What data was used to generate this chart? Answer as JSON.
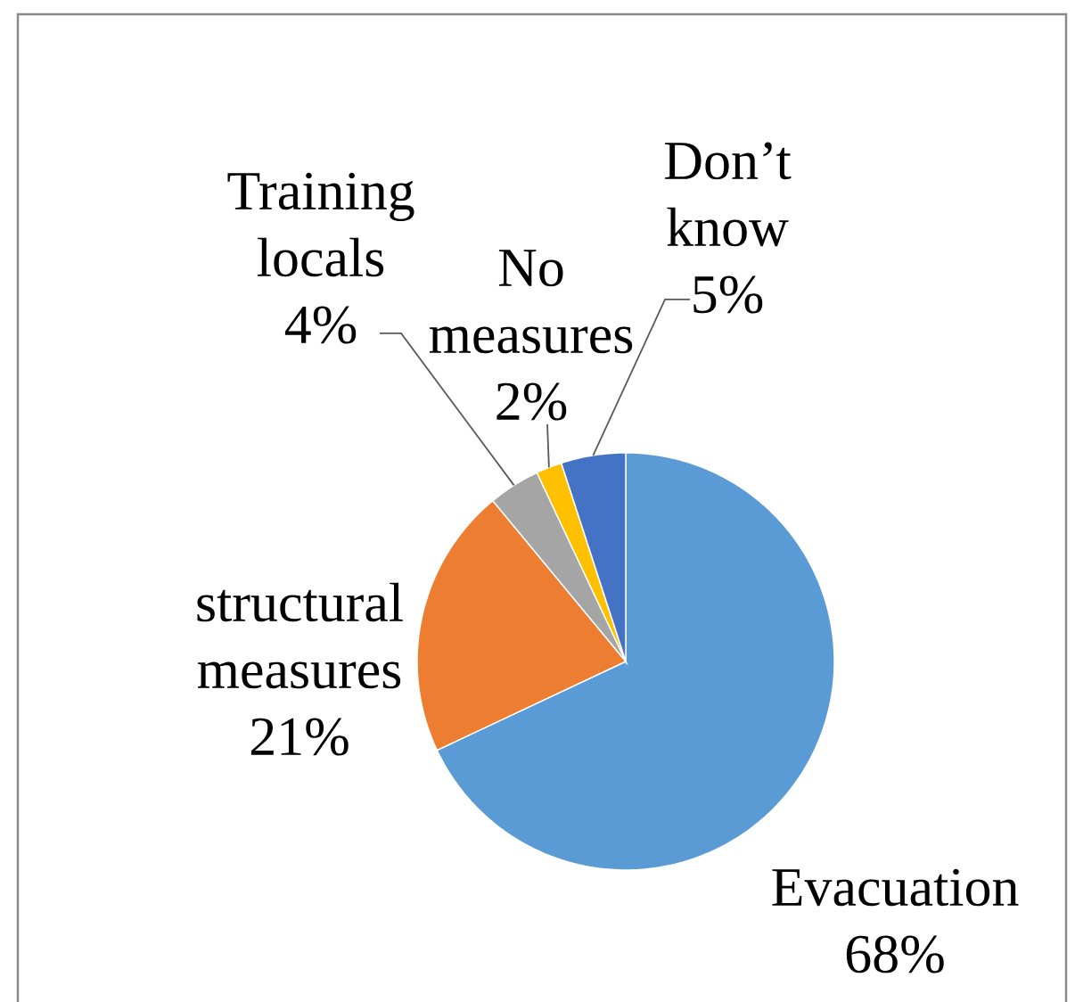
{
  "chart_data": {
    "type": "pie",
    "categories": [
      "Evacuation",
      "structural measures",
      "Training locals",
      "No measures",
      "Don’t know"
    ],
    "values": [
      68,
      21,
      4,
      2,
      5
    ],
    "colors": [
      "#5b9bd5",
      "#ed7d31",
      "#a5a5a5",
      "#ffc000",
      "#4472c4"
    ],
    "value_labels": [
      "68%",
      "21%",
      "4%",
      "2%",
      "5%"
    ]
  }
}
